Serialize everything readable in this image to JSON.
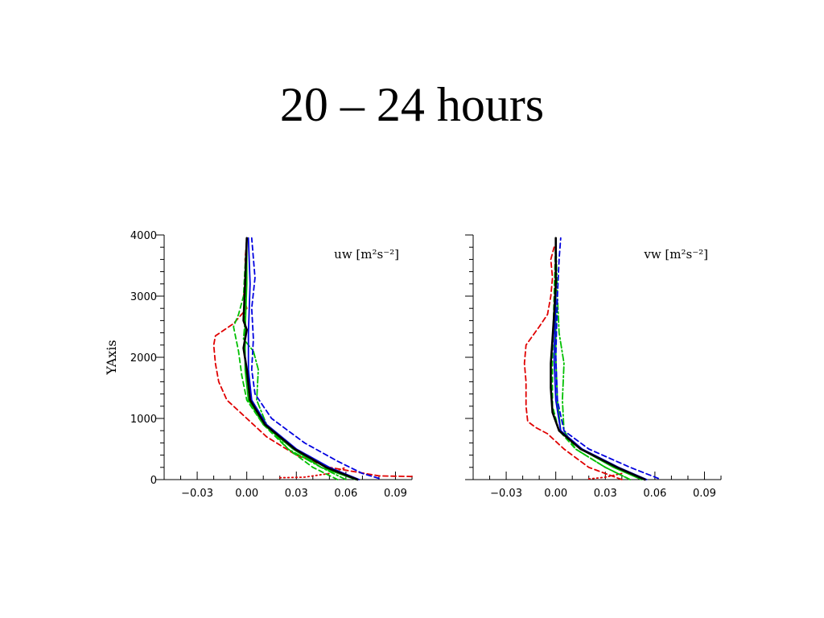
{
  "page": {
    "title": "20 – 24 hours"
  },
  "chart_data": [
    {
      "type": "line",
      "panel_label": "uw [m²s⁻²]",
      "xlabel": "",
      "ylabel": "YAxis",
      "xlim": [
        -0.05,
        0.1
      ],
      "ylim": [
        0,
        4000
      ],
      "x_ticks": [
        -0.03,
        0.0,
        0.03,
        0.06,
        0.09
      ],
      "x_tick_labels": [
        "−0.03",
        "0.00",
        "0.03",
        "0.06",
        "0.09"
      ],
      "y_ticks": [
        0,
        1000,
        2000,
        3000,
        4000
      ],
      "y_tick_labels": [
        "0",
        "1000",
        "2000",
        "3000",
        "4000"
      ],
      "series": [
        {
          "color": "#e00000",
          "dash": "dashed",
          "x": [
            0.1,
            0.08,
            0.05,
            0.03,
            0.012,
            0.0,
            -0.012,
            -0.017,
            -0.019,
            -0.02,
            -0.019,
            -0.008,
            0.0,
            -0.002,
            0.0,
            -0.001,
            0.0
          ],
          "y": [
            50,
            60,
            200,
            400,
            700,
            1000,
            1300,
            1600,
            1900,
            2200,
            2350,
            2550,
            2800,
            3000,
            3300,
            3600,
            3950
          ]
        },
        {
          "color": "#e00000",
          "dash": "dotted",
          "x": [
            0.02,
            0.035,
            0.05,
            0.06
          ],
          "y": [
            30,
            40,
            100,
            200
          ]
        },
        {
          "color": "#00c000",
          "dash": "dashed",
          "x": [
            0.055,
            0.04,
            0.025,
            0.01,
            0.0,
            -0.003,
            -0.005,
            -0.008,
            -0.005,
            -0.002,
            -0.001,
            0.0
          ],
          "y": [
            0,
            200,
            500,
            900,
            1300,
            1700,
            2100,
            2500,
            2700,
            3000,
            3500,
            3950
          ]
        },
        {
          "color": "#00c000",
          "dash": "dashdot",
          "x": [
            0.06,
            0.045,
            0.025,
            0.012,
            0.006,
            0.007,
            0.004,
            -0.002,
            -0.001,
            -0.001,
            0.0
          ],
          "y": [
            0,
            200,
            500,
            900,
            1300,
            1800,
            2100,
            2300,
            2600,
            3200,
            3950
          ]
        },
        {
          "color": "#00c000",
          "dash": "solid",
          "x": [
            0.066,
            0.045,
            0.028,
            0.01,
            0.001,
            -0.001,
            -0.001,
            0.0,
            0.0
          ],
          "y": [
            0,
            200,
            500,
            900,
            1300,
            1800,
            2400,
            3200,
            3950
          ]
        },
        {
          "color": "#0000e0",
          "dash": "dashed",
          "x": [
            0.08,
            0.07,
            0.055,
            0.035,
            0.015,
            0.005,
            0.003,
            0.004,
            0.003,
            0.005,
            0.003
          ],
          "y": [
            20,
            100,
            300,
            600,
            1000,
            1400,
            1800,
            2300,
            2800,
            3300,
            3950
          ]
        },
        {
          "color": "#0000e0",
          "dash": "solid",
          "x": [
            0.068,
            0.05,
            0.03,
            0.012,
            0.003,
            0.001,
            0.001,
            0.002,
            0.001
          ],
          "y": [
            0,
            200,
            500,
            900,
            1300,
            1800,
            2400,
            3200,
            3950
          ]
        },
        {
          "color": "#000000",
          "dash": "solid",
          "width": 2.6,
          "x": [
            0.067,
            0.048,
            0.029,
            0.011,
            0.002,
            0.0,
            -0.002,
            -0.001,
            0.0,
            -0.002,
            -0.001,
            0.0
          ],
          "y": [
            0,
            200,
            500,
            900,
            1300,
            1800,
            2150,
            2300,
            2450,
            2600,
            3200,
            3950
          ]
        }
      ]
    },
    {
      "type": "line",
      "panel_label": "vw [m²s⁻²]",
      "xlabel": "",
      "ylabel": "",
      "xlim": [
        -0.05,
        0.1
      ],
      "ylim": [
        0,
        4000
      ],
      "x_ticks": [
        -0.03,
        0.0,
        0.03,
        0.06,
        0.09
      ],
      "x_tick_labels": [
        "−0.03",
        "0.00",
        "0.03",
        "0.06",
        "0.09"
      ],
      "y_ticks": [
        0,
        1000,
        2000,
        3000,
        4000
      ],
      "y_tick_labels": [],
      "series": [
        {
          "color": "#e00000",
          "dash": "dashed",
          "x": [
            0.04,
            0.02,
            0.005,
            -0.005,
            -0.012,
            -0.017,
            -0.018,
            -0.018,
            -0.019,
            -0.018,
            -0.01,
            -0.005,
            -0.003,
            -0.002,
            -0.003,
            -0.001
          ],
          "y": [
            0,
            200,
            500,
            750,
            850,
            950,
            1200,
            1600,
            1900,
            2200,
            2500,
            2700,
            3000,
            3300,
            3600,
            3800
          ]
        },
        {
          "color": "#e00000",
          "dash": "dotted",
          "x": [
            0.02,
            0.03,
            0.04
          ],
          "y": [
            10,
            40,
            100
          ]
        },
        {
          "color": "#00c000",
          "dash": "dashed",
          "x": [
            0.045,
            0.03,
            0.012,
            0.002,
            -0.002,
            -0.002,
            -0.001,
            0.0
          ],
          "y": [
            0,
            200,
            500,
            800,
            1200,
            2000,
            3000,
            3950
          ]
        },
        {
          "color": "#00c000",
          "dash": "dashdot",
          "x": [
            0.045,
            0.03,
            0.012,
            0.005,
            0.004,
            0.005,
            0.002,
            0.001,
            0.0
          ],
          "y": [
            0,
            200,
            500,
            800,
            1300,
            1900,
            2400,
            3000,
            3950
          ]
        },
        {
          "color": "#00c000",
          "dash": "solid",
          "x": [
            0.052,
            0.035,
            0.015,
            0.003,
            0.001,
            0.0,
            0.0,
            0.0
          ],
          "y": [
            0,
            200,
            500,
            800,
            1300,
            2000,
            3000,
            3950
          ]
        },
        {
          "color": "#0000e0",
          "dash": "dashed",
          "x": [
            0.062,
            0.045,
            0.02,
            0.005,
            0.001,
            0.0,
            0.001,
            0.002,
            0.003
          ],
          "y": [
            20,
            200,
            500,
            800,
            1300,
            2000,
            3000,
            3600,
            3950
          ]
        },
        {
          "color": "#0000e0",
          "dash": "solid",
          "x": [
            0.055,
            0.038,
            0.016,
            0.003,
            0.0,
            -0.001,
            0.0,
            0.0
          ],
          "y": [
            0,
            200,
            500,
            800,
            1300,
            2000,
            3000,
            3950
          ]
        },
        {
          "color": "#000000",
          "dash": "solid",
          "width": 2.6,
          "x": [
            0.054,
            0.037,
            0.015,
            0.002,
            -0.002,
            -0.003,
            -0.003,
            -0.002,
            -0.001,
            0.0,
            0.0
          ],
          "y": [
            0,
            200,
            500,
            800,
            1100,
            1500,
            1900,
            2300,
            2700,
            3200,
            3950
          ]
        }
      ]
    }
  ]
}
